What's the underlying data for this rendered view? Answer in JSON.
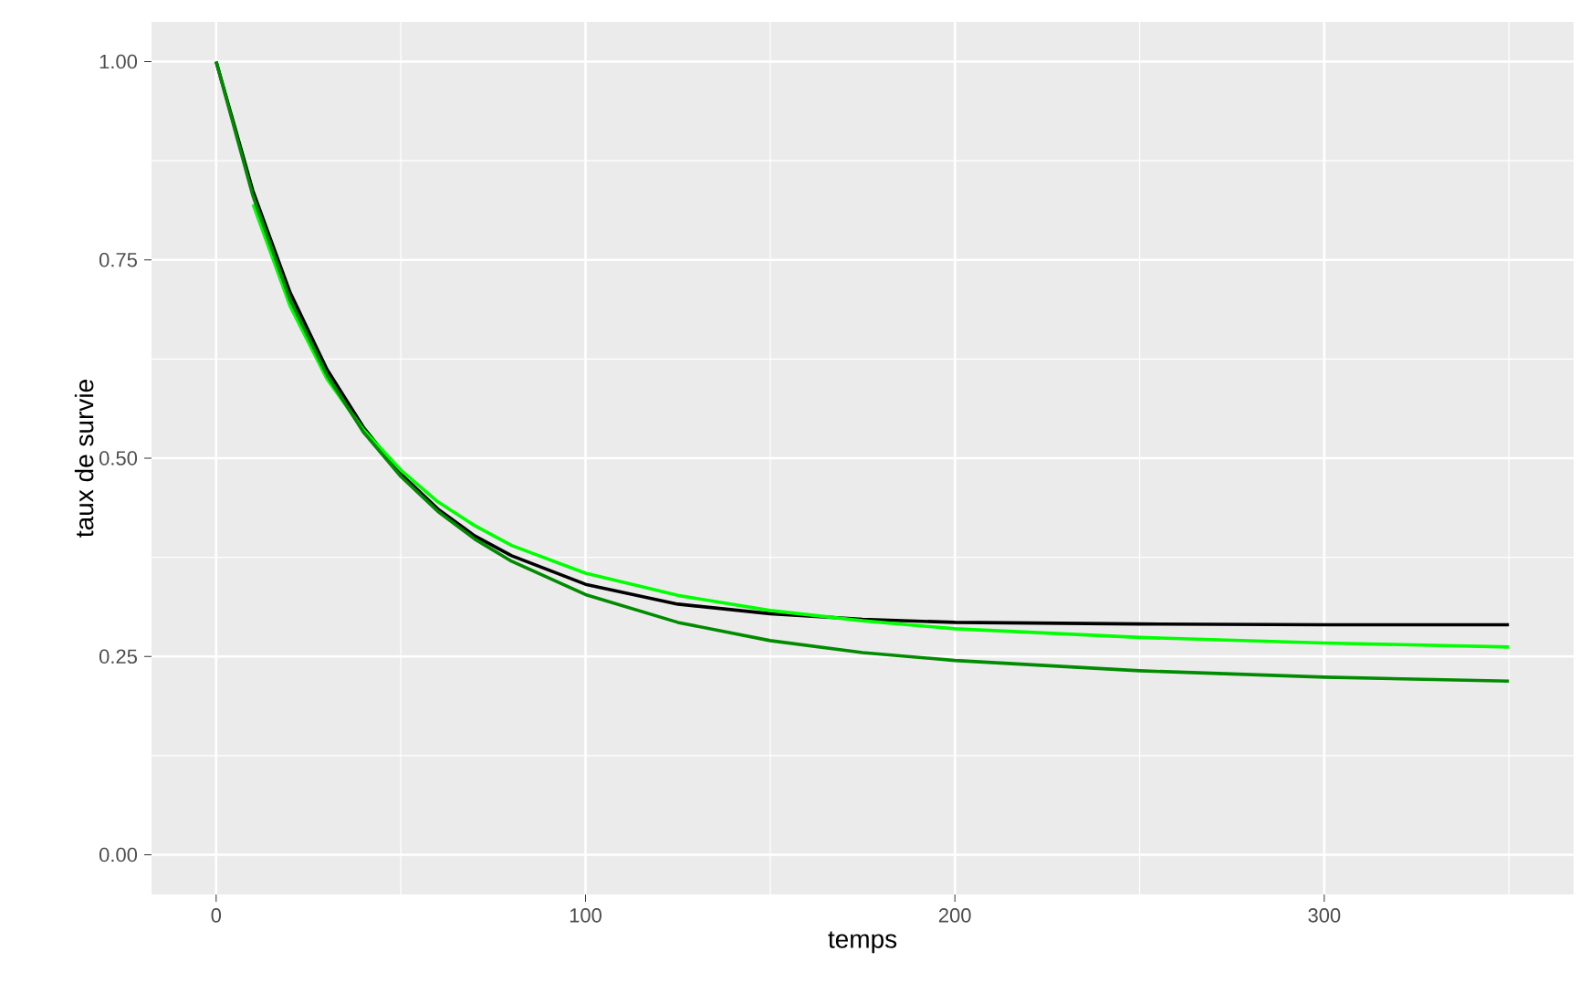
{
  "chart_data": {
    "type": "line",
    "xlabel": "temps",
    "ylabel": "taux de survie",
    "x": [
      0,
      10,
      20,
      30,
      40,
      50,
      60,
      70,
      80,
      100,
      125,
      150,
      175,
      200,
      250,
      300,
      350
    ],
    "series": [
      {
        "color": "#000000",
        "values": [
          1.0,
          0.836,
          0.709,
          0.612,
          0.538,
          0.48,
          0.436,
          0.402,
          0.377,
          0.341,
          0.316,
          0.304,
          0.297,
          0.293,
          0.291,
          0.29,
          0.29
        ]
      },
      {
        "color": "#00ff00",
        "values": [
          null,
          0.82,
          0.692,
          0.6,
          0.535,
          0.485,
          0.445,
          0.415,
          0.39,
          0.355,
          0.327,
          0.308,
          0.295,
          0.285,
          0.274,
          0.267,
          0.262
        ]
      },
      {
        "color": "#008b00",
        "values": [
          1.0,
          0.83,
          0.7,
          0.605,
          0.532,
          0.477,
          0.433,
          0.398,
          0.37,
          0.328,
          0.293,
          0.27,
          0.255,
          0.245,
          0.232,
          0.224,
          0.219
        ]
      }
    ],
    "xlim": [
      -17.5,
      367.5
    ],
    "ylim": [
      -0.05,
      1.05
    ],
    "xticks": [
      0,
      100,
      200,
      300
    ],
    "yticks": [
      {
        "value": 0,
        "label": "0.00"
      },
      {
        "value": 0.25,
        "label": "0.25"
      },
      {
        "value": 0.5,
        "label": "0.50"
      },
      {
        "value": 0.75,
        "label": "0.75"
      },
      {
        "value": 1,
        "label": "1.00"
      }
    ],
    "grid": true,
    "line_style": "solid",
    "marker": "none"
  }
}
